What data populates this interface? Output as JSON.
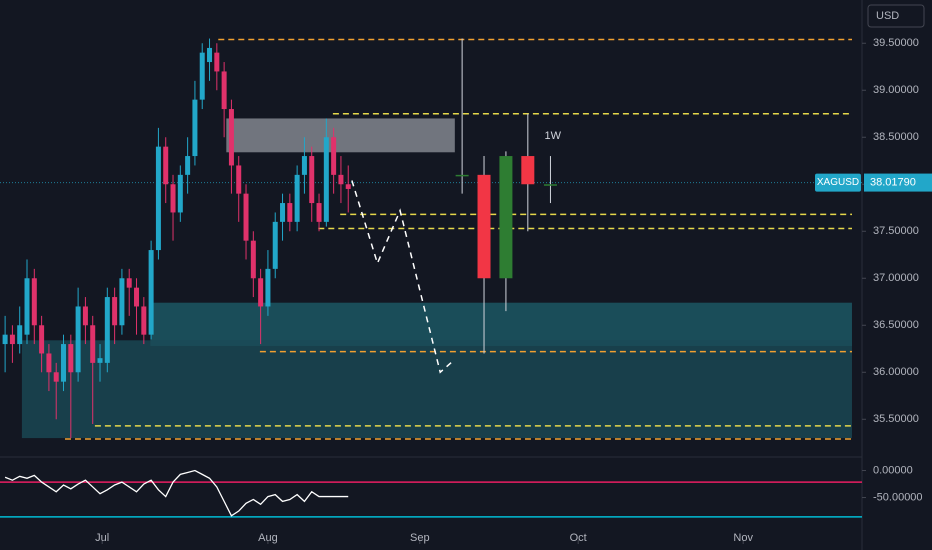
{
  "chart_data": {
    "type": "candlestick",
    "currency": "USD",
    "symbol": "XAGUSD",
    "timeframe_label": "1W",
    "current_price": {
      "value": 38.0179,
      "label": "38.01790"
    },
    "up_color": "#22a7c9",
    "down_color": "#e0326b",
    "xlim": [
      -0.7,
      117.1
    ],
    "ylim": [
      35.12,
      39.96
    ],
    "xticks": [
      {
        "value": 13.3,
        "label": "Jul"
      },
      {
        "value": 36.0,
        "label": "Aug"
      },
      {
        "value": 56.8,
        "label": "Sep"
      },
      {
        "value": 78.5,
        "label": "Oct"
      },
      {
        "value": 101.1,
        "label": "Nov"
      }
    ],
    "yticks": [
      {
        "value": 35.5,
        "label": "35.50000"
      },
      {
        "value": 36.0,
        "label": "36.00000"
      },
      {
        "value": 36.5,
        "label": "36.50000"
      },
      {
        "value": 37.0,
        "label": "37.00000"
      },
      {
        "value": 37.5,
        "label": "37.50000"
      },
      {
        "value": 38.0,
        "label": "38.00000"
      },
      {
        "value": 38.5,
        "label": "38.50000"
      },
      {
        "value": 39.0,
        "label": "39.00000"
      },
      {
        "value": 39.5,
        "label": "39.50000"
      }
    ],
    "candles": {
      "x": [
        0,
        1,
        2,
        3,
        4,
        5,
        6,
        7,
        8,
        9,
        10,
        11,
        12,
        13,
        14,
        15,
        16,
        17,
        18,
        19,
        20,
        21,
        22,
        23,
        24,
        25,
        26,
        27,
        28,
        29,
        30,
        31,
        32,
        33,
        34,
        35,
        36,
        37,
        38,
        39,
        40,
        41,
        42,
        43,
        44,
        45,
        46,
        47
      ],
      "open": [
        36.3,
        36.4,
        36.3,
        36.4,
        37.0,
        36.5,
        36.2,
        36.0,
        35.9,
        36.3,
        36.0,
        36.7,
        36.5,
        36.1,
        36.1,
        36.8,
        36.5,
        37.0,
        36.9,
        36.7,
        36.4,
        37.3,
        38.4,
        38.0,
        37.7,
        38.1,
        38.3,
        38.9,
        39.3,
        39.4,
        39.2,
        38.8,
        38.2,
        37.9,
        37.4,
        37.0,
        36.7,
        37.1,
        37.6,
        37.8,
        37.6,
        38.1,
        38.3,
        37.8,
        37.6,
        38.5,
        38.1,
        38.0
      ],
      "high": [
        36.6,
        36.5,
        36.7,
        37.2,
        37.1,
        36.6,
        36.3,
        36.1,
        36.4,
        36.4,
        36.9,
        36.8,
        36.6,
        36.3,
        36.9,
        36.9,
        37.1,
        37.1,
        37.0,
        36.8,
        37.4,
        38.6,
        38.5,
        38.1,
        38.2,
        38.5,
        39.1,
        39.5,
        39.55,
        39.5,
        39.3,
        38.9,
        38.3,
        38.0,
        37.5,
        37.1,
        37.3,
        37.7,
        37.9,
        37.9,
        38.2,
        38.5,
        38.4,
        37.9,
        38.7,
        38.6,
        38.3,
        38.2
      ],
      "low": [
        36.0,
        36.1,
        36.2,
        36.3,
        36.3,
        36.0,
        35.8,
        35.5,
        35.8,
        35.3,
        35.9,
        36.3,
        35.45,
        35.9,
        36.0,
        36.3,
        36.4,
        36.6,
        36.4,
        36.3,
        36.35,
        37.2,
        37.8,
        37.4,
        37.6,
        37.9,
        38.2,
        38.8,
        39.1,
        39.0,
        38.5,
        37.9,
        37.6,
        37.2,
        36.8,
        36.3,
        36.6,
        37.0,
        37.4,
        37.5,
        37.5,
        37.9,
        37.6,
        37.5,
        37.55,
        37.9,
        37.8,
        37.7
      ],
      "close": [
        36.4,
        36.3,
        36.5,
        37.0,
        36.5,
        36.2,
        36.0,
        35.9,
        36.3,
        36.0,
        36.7,
        36.5,
        36.1,
        36.15,
        36.8,
        36.5,
        37.0,
        36.9,
        36.7,
        36.4,
        37.3,
        38.4,
        38.0,
        37.7,
        38.1,
        38.3,
        38.9,
        39.4,
        39.45,
        39.2,
        38.8,
        38.2,
        37.9,
        37.4,
        37.0,
        36.7,
        37.1,
        37.6,
        37.8,
        37.6,
        38.1,
        38.3,
        37.8,
        37.6,
        38.5,
        38.1,
        38.0,
        37.95
      ]
    },
    "weekly_candles": {
      "x": [
        62.6,
        65.6,
        68.6,
        71.6,
        74.7
      ],
      "open": [
        38.1,
        38.1,
        37.0,
        38.3,
        38.0
      ],
      "high": [
        39.55,
        38.3,
        38.35,
        38.75,
        38.3
      ],
      "low": [
        37.9,
        36.2,
        36.65,
        37.5,
        37.8
      ],
      "close": [
        38.1,
        37.0,
        38.3,
        38.0,
        38.0
      ],
      "up_color": "#2e7d32",
      "down_color": "#f23645"
    },
    "zones": [
      {
        "x0": 19.9,
        "x1": 116.0,
        "y0": 36.28,
        "y1": 36.74,
        "color": "#1d5b68"
      },
      {
        "x0": 2.3,
        "x1": 116.0,
        "y0": 35.3,
        "y1": 36.34,
        "color": "#1a4a56"
      },
      {
        "x0": 30.3,
        "x1": 61.6,
        "y0": 38.34,
        "y1": 38.7,
        "color": "#8a8d96"
      }
    ],
    "levels": [
      {
        "value": 39.54,
        "x0": 29.2,
        "color": "#f0a030"
      },
      {
        "value": 38.75,
        "x0": 44.9,
        "color": "#e6d84a"
      },
      {
        "value": 37.68,
        "x0": 45.9,
        "color": "#e6d84a"
      },
      {
        "value": 37.53,
        "x0": 42.9,
        "color": "#e6d84a"
      },
      {
        "value": 36.22,
        "x0": 34.9,
        "color": "#f0a030"
      },
      {
        "value": 35.43,
        "x0": 12.3,
        "color": "#e6d84a"
      },
      {
        "value": 35.29,
        "x0": 8.2,
        "color": "#f0a030"
      }
    ],
    "projection": {
      "x": [
        47.5,
        51.0,
        54.1,
        59.6,
        61.2
      ],
      "values": [
        38.04,
        37.16,
        37.72,
        36.0,
        36.11
      ]
    },
    "rsi": {
      "ylim": [
        -128.6,
        23.2
      ],
      "yticks": [
        {
          "value": 0,
          "label": "0.00000"
        },
        {
          "value": -50,
          "label": "-50.00000"
        }
      ],
      "values": [
        -12.5,
        -17.9,
        -10.7,
        -14.3,
        -8.9,
        -21.4,
        -30.4,
        -39.3,
        -26.8,
        -33.9,
        -25,
        -17.9,
        -30.4,
        -42.9,
        -35.7,
        -26.8,
        -21.4,
        -30.4,
        -39.3,
        -25,
        -17.9,
        -35.7,
        -48.2,
        -21.4,
        -7.1,
        -3.6,
        0,
        -7.1,
        -14.3,
        -30.4,
        -57.1,
        -83.9,
        -75,
        -60.7,
        -53.6,
        -62.5,
        -48.2,
        -44.6,
        -57.1,
        -53.6,
        -44.6,
        -57.1,
        -39.3,
        -48.2,
        -48.2,
        -48.2,
        -48.2,
        -48.2
      ],
      "levels": [
        {
          "value": -21.4,
          "color": "#e91e63"
        },
        {
          "value": -85.7,
          "color": "#00bcd4"
        }
      ]
    }
  }
}
